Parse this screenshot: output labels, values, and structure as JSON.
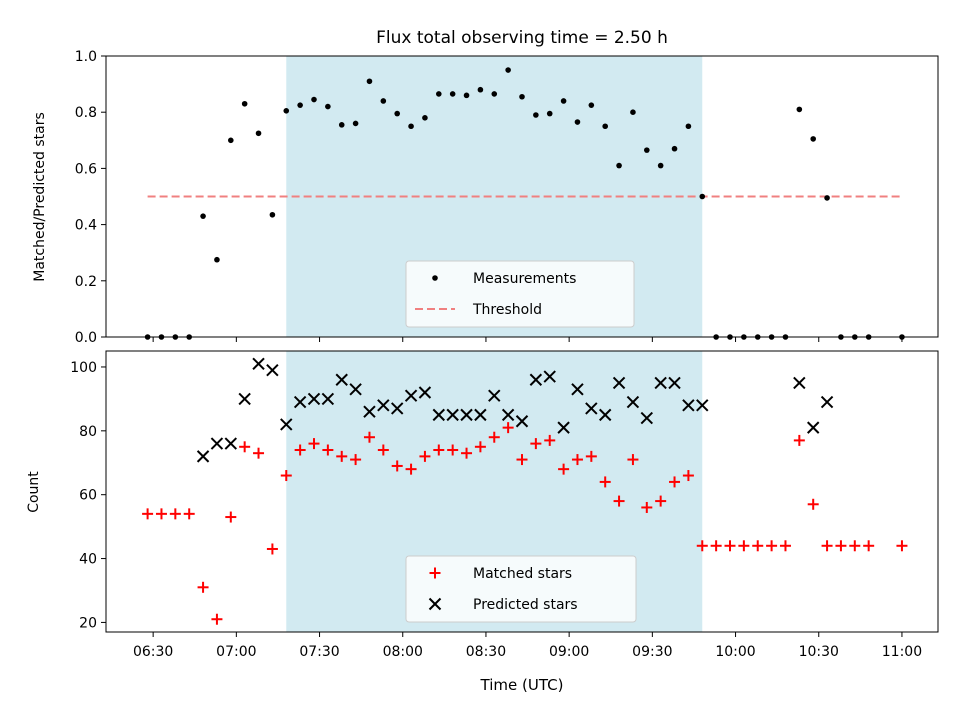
{
  "chart_data": [
    {
      "type": "scatter",
      "title": "Flux total observing time = 2.50 h",
      "ylabel": "Matched/Predicted stars",
      "ylim": [
        0,
        1
      ],
      "yticks": [
        0.0,
        0.2,
        0.4,
        0.6,
        0.8,
        1.0
      ],
      "ytick_labels": [
        "0.0",
        "0.2",
        "0.4",
        "0.6",
        "0.8",
        "1.0"
      ],
      "xlim": [
        "06:13",
        "11:13"
      ],
      "shaded_interval": [
        "07:18",
        "09:48"
      ],
      "shaded_color": "#add8e6",
      "legend_position": "lower center",
      "series": [
        {
          "name": "Measurements",
          "kind": "points",
          "marker": "dot",
          "color": "#000000",
          "x": [
            "06:28",
            "06:33",
            "06:38",
            "06:43",
            "06:48",
            "06:53",
            "06:58",
            "07:03",
            "07:08",
            "07:13",
            "07:18",
            "07:23",
            "07:28",
            "07:33",
            "07:38",
            "07:43",
            "07:48",
            "07:53",
            "07:58",
            "08:03",
            "08:08",
            "08:13",
            "08:18",
            "08:23",
            "08:28",
            "08:33",
            "08:38",
            "08:43",
            "08:48",
            "08:53",
            "08:58",
            "09:03",
            "09:08",
            "09:13",
            "09:18",
            "09:23",
            "09:28",
            "09:33",
            "09:38",
            "09:43",
            "09:48",
            "09:53",
            "09:58",
            "10:03",
            "10:08",
            "10:13",
            "10:18",
            "10:23",
            "10:28",
            "10:33",
            "10:38",
            "10:43",
            "10:48",
            "11:00"
          ],
          "y": [
            0,
            0,
            0,
            0,
            0.43,
            0.275,
            0.7,
            0.83,
            0.725,
            0.435,
            0.805,
            0.825,
            0.845,
            0.82,
            0.755,
            0.76,
            0.91,
            0.84,
            0.795,
            0.75,
            0.78,
            0.865,
            0.865,
            0.86,
            0.88,
            0.865,
            0.95,
            0.855,
            0.79,
            0.795,
            0.84,
            0.765,
            0.825,
            0.75,
            0.61,
            0.8,
            0.665,
            0.61,
            0.67,
            0.75,
            0.5,
            0,
            0,
            0,
            0,
            0,
            0,
            0.81,
            0.705,
            0.495,
            0,
            0,
            0,
            0
          ]
        },
        {
          "name": "Threshold",
          "kind": "line",
          "style": "dashed",
          "color": "#f08080",
          "x": [
            "06:28",
            "11:00"
          ],
          "y": [
            0.5,
            0.5
          ]
        }
      ]
    },
    {
      "type": "scatter",
      "xlabel": "Time (UTC)",
      "ylabel": "Count",
      "ylim": [
        17,
        105
      ],
      "yticks": [
        20,
        40,
        60,
        80,
        100
      ],
      "ytick_labels": [
        "20",
        "40",
        "60",
        "80",
        "100"
      ],
      "xlim": [
        "06:13",
        "11:13"
      ],
      "xticks": [
        "06:30",
        "07:00",
        "07:30",
        "08:00",
        "08:30",
        "09:00",
        "09:30",
        "10:00",
        "10:30",
        "11:00"
      ],
      "xtick_labels": [
        "06:30",
        "07:00",
        "07:30",
        "08:00",
        "08:30",
        "09:00",
        "09:30",
        "10:00",
        "10:30",
        "11:00"
      ],
      "shaded_interval": [
        "07:18",
        "09:48"
      ],
      "shaded_color": "#add8e6",
      "legend_position": "lower center",
      "series": [
        {
          "name": "Matched stars",
          "kind": "points",
          "marker": "plus",
          "color": "#ff0000",
          "x": [
            "06:28",
            "06:33",
            "06:38",
            "06:43",
            "06:48",
            "06:53",
            "06:58",
            "07:03",
            "07:08",
            "07:13",
            "07:18",
            "07:23",
            "07:28",
            "07:33",
            "07:38",
            "07:43",
            "07:48",
            "07:53",
            "07:58",
            "08:03",
            "08:08",
            "08:13",
            "08:18",
            "08:23",
            "08:28",
            "08:33",
            "08:38",
            "08:43",
            "08:48",
            "08:53",
            "08:58",
            "09:03",
            "09:08",
            "09:13",
            "09:18",
            "09:23",
            "09:28",
            "09:33",
            "09:38",
            "09:43",
            "09:48",
            "09:53",
            "09:58",
            "10:03",
            "10:08",
            "10:13",
            "10:18",
            "10:23",
            "10:28",
            "10:33",
            "10:38",
            "10:43",
            "10:48",
            "11:00"
          ],
          "y": [
            54,
            54,
            54,
            54,
            31,
            21,
            53,
            75,
            73,
            43,
            66,
            74,
            76,
            74,
            72,
            71,
            78,
            74,
            69,
            68,
            72,
            74,
            74,
            73,
            75,
            78,
            81,
            71,
            76,
            77,
            68,
            71,
            72,
            64,
            58,
            71,
            56,
            58,
            64,
            66,
            44,
            44,
            44,
            44,
            44,
            44,
            44,
            77,
            57,
            44,
            44,
            44,
            44,
            44
          ]
        },
        {
          "name": "Predicted stars",
          "kind": "points",
          "marker": "x",
          "color": "#000000",
          "x": [
            "06:48",
            "06:53",
            "06:58",
            "07:03",
            "07:08",
            "07:13",
            "07:18",
            "07:23",
            "07:28",
            "07:33",
            "07:38",
            "07:43",
            "07:48",
            "07:53",
            "07:58",
            "08:03",
            "08:08",
            "08:13",
            "08:18",
            "08:23",
            "08:28",
            "08:33",
            "08:38",
            "08:43",
            "08:48",
            "08:53",
            "08:58",
            "09:03",
            "09:08",
            "09:13",
            "09:18",
            "09:23",
            "09:28",
            "09:33",
            "09:38",
            "09:43",
            "09:48",
            "10:23",
            "10:28",
            "10:33"
          ],
          "y": [
            72,
            76,
            76,
            90,
            101,
            99,
            82,
            89,
            90,
            90,
            96,
            93,
            86,
            88,
            87,
            91,
            92,
            85,
            85,
            85,
            85,
            91,
            85,
            83,
            96,
            97,
            81,
            93,
            87,
            85,
            95,
            89,
            84,
            95,
            95,
            88,
            88,
            95,
            81,
            89
          ]
        }
      ]
    }
  ]
}
